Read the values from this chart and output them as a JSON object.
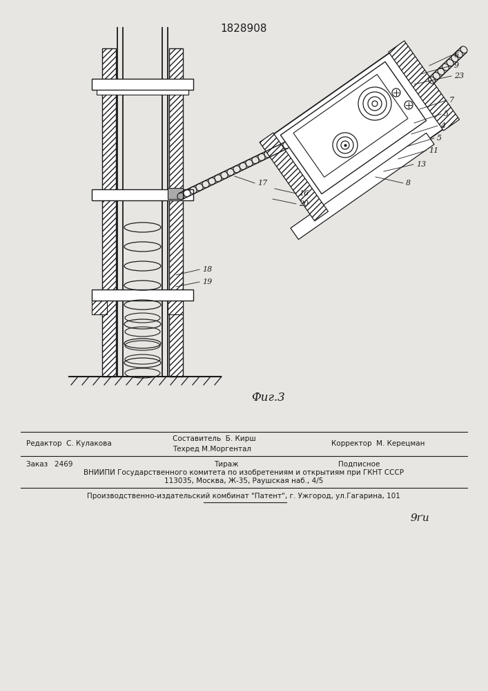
{
  "patent_number": "1828908",
  "fig_label": "Фиг.3",
  "background_color": "#e8e6e2",
  "line_color": "#1a1a1a",
  "editor_line": "Редактор  С. Кулакова",
  "compiler_line1": "Составитель  Б. Кирш",
  "compiler_line2": "Техред М.Моргентал",
  "corrector_line": "Корректор  М. Керецман",
  "order_line": "Заказ   2469",
  "tirazh_line": "Тираж",
  "podpisnoe_line": "Подписное",
  "vniipи_line": "ВНИИПИ Государственного комитета по изобретениям и открытиям при ГКНТ СССР",
  "address_line": "113035, Москва, Ж-35, Раушская наб., 4/5",
  "factory_line": "Производственно-издательский комбинат \"Патент\", г. Ужгород, ул.Гагарина, 101",
  "page_num": "9ґи"
}
